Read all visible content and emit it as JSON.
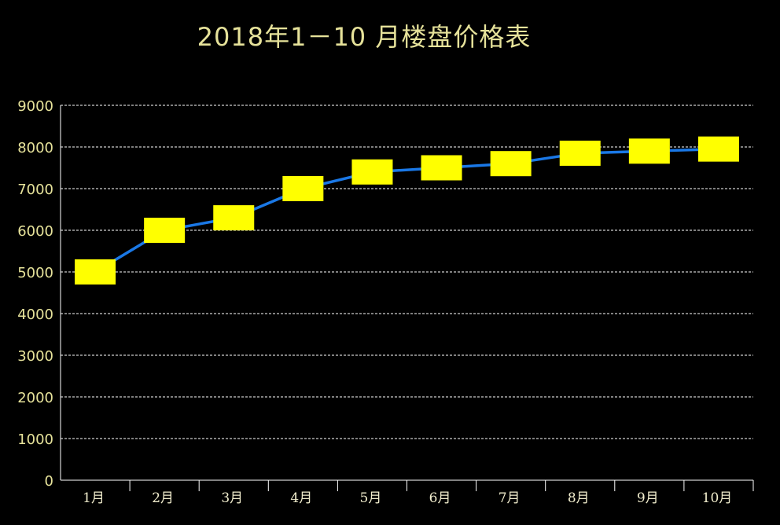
{
  "chart_data": {
    "type": "line",
    "title": "2018年1－10 月楼盘价格表",
    "xlabel": "",
    "ylabel": "",
    "categories": [
      "1月",
      "2月",
      "3月",
      "4月",
      "5月",
      "6月",
      "7月",
      "8月",
      "9月",
      "10月"
    ],
    "values": [
      5000,
      6000,
      6300,
      7000,
      7400,
      7500,
      7600,
      7850,
      7900,
      7950
    ],
    "ylim": [
      0,
      9000
    ],
    "yticks": [
      "0",
      "1000",
      "2000",
      "3000",
      "4000",
      "5000",
      "6000",
      "7000",
      "8000",
      "9000"
    ],
    "grid": true,
    "legend": "none",
    "colors": {
      "background": "#000000",
      "line": "#1a78e6",
      "marker": "#ffff00",
      "text": "#e6e29a",
      "grid": "#ffffff"
    },
    "marker": "rectangle"
  }
}
